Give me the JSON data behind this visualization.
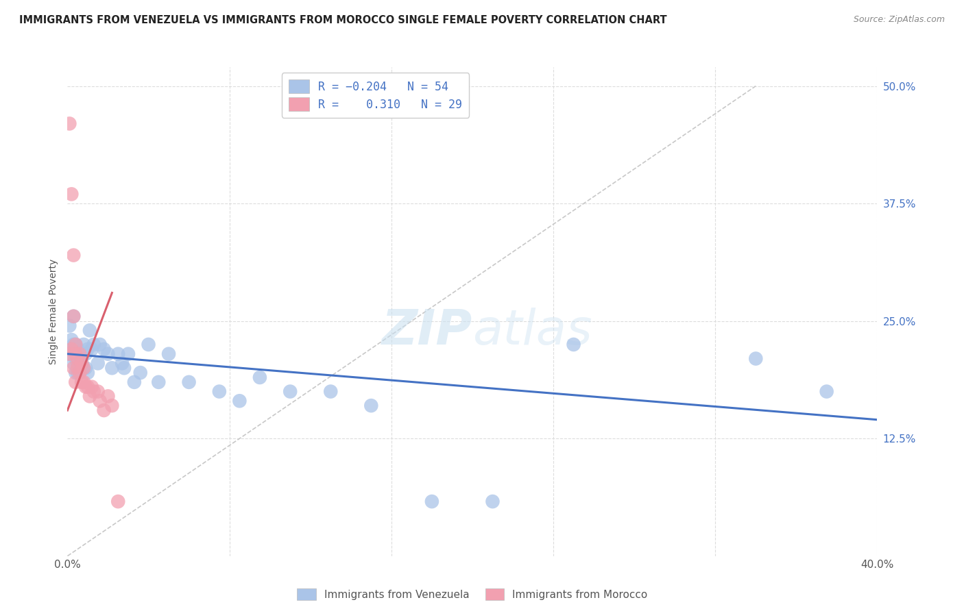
{
  "title": "IMMIGRANTS FROM VENEZUELA VS IMMIGRANTS FROM MOROCCO SINGLE FEMALE POVERTY CORRELATION CHART",
  "source": "Source: ZipAtlas.com",
  "ylabel": "Single Female Poverty",
  "blue_color": "#aac4e8",
  "pink_color": "#f2a0b0",
  "blue_line_color": "#4472c4",
  "pink_line_color": "#d9606e",
  "diag_line_color": "#c8c8c8",
  "watermark_zip": "ZIP",
  "watermark_atlas": "atlas",
  "xlim": [
    0.0,
    0.4
  ],
  "ylim": [
    0.0,
    0.52
  ],
  "yticks": [
    0.0,
    0.125,
    0.25,
    0.375,
    0.5
  ],
  "ytick_labels_right": [
    "",
    "12.5%",
    "25.0%",
    "37.5%",
    "50.0%"
  ],
  "xtick_positions": [
    0.0,
    0.08,
    0.16,
    0.24,
    0.32,
    0.4
  ],
  "xtick_labels": [
    "0.0%",
    "",
    "",
    "",
    "",
    "40.0%"
  ],
  "venezuela_x": [
    0.001,
    0.001,
    0.002,
    0.002,
    0.003,
    0.003,
    0.003,
    0.004,
    0.004,
    0.004,
    0.005,
    0.005,
    0.005,
    0.005,
    0.006,
    0.006,
    0.006,
    0.007,
    0.007,
    0.008,
    0.008,
    0.009,
    0.009,
    0.01,
    0.01,
    0.011,
    0.012,
    0.013,
    0.015,
    0.016,
    0.018,
    0.02,
    0.022,
    0.025,
    0.027,
    0.028,
    0.03,
    0.033,
    0.036,
    0.04,
    0.045,
    0.05,
    0.06,
    0.075,
    0.085,
    0.095,
    0.11,
    0.13,
    0.15,
    0.18,
    0.21,
    0.25,
    0.34,
    0.375
  ],
  "venezuela_y": [
    0.245,
    0.215,
    0.23,
    0.22,
    0.255,
    0.225,
    0.205,
    0.225,
    0.21,
    0.195,
    0.22,
    0.205,
    0.195,
    0.215,
    0.215,
    0.2,
    0.195,
    0.215,
    0.21,
    0.225,
    0.2,
    0.2,
    0.215,
    0.22,
    0.195,
    0.24,
    0.22,
    0.225,
    0.205,
    0.225,
    0.22,
    0.215,
    0.2,
    0.215,
    0.205,
    0.2,
    0.215,
    0.185,
    0.195,
    0.225,
    0.185,
    0.215,
    0.185,
    0.175,
    0.165,
    0.19,
    0.175,
    0.175,
    0.16,
    0.058,
    0.058,
    0.225,
    0.21,
    0.175
  ],
  "morocco_x": [
    0.001,
    0.001,
    0.002,
    0.002,
    0.003,
    0.003,
    0.003,
    0.004,
    0.004,
    0.004,
    0.005,
    0.005,
    0.006,
    0.006,
    0.007,
    0.007,
    0.008,
    0.008,
    0.009,
    0.01,
    0.011,
    0.012,
    0.013,
    0.015,
    0.016,
    0.018,
    0.02,
    0.022,
    0.025
  ],
  "morocco_y": [
    0.46,
    0.215,
    0.385,
    0.22,
    0.32,
    0.255,
    0.2,
    0.225,
    0.215,
    0.185,
    0.21,
    0.2,
    0.215,
    0.195,
    0.205,
    0.185,
    0.2,
    0.185,
    0.18,
    0.18,
    0.17,
    0.18,
    0.175,
    0.175,
    0.165,
    0.155,
    0.17,
    0.16,
    0.058
  ],
  "blue_trendline_x": [
    0.0,
    0.4
  ],
  "blue_trendline_y": [
    0.215,
    0.145
  ],
  "pink_trendline_x": [
    0.0,
    0.022
  ],
  "pink_trendline_y": [
    0.155,
    0.28
  ],
  "diag_line_x": [
    0.0,
    0.34
  ],
  "diag_line_y": [
    0.0,
    0.5
  ]
}
